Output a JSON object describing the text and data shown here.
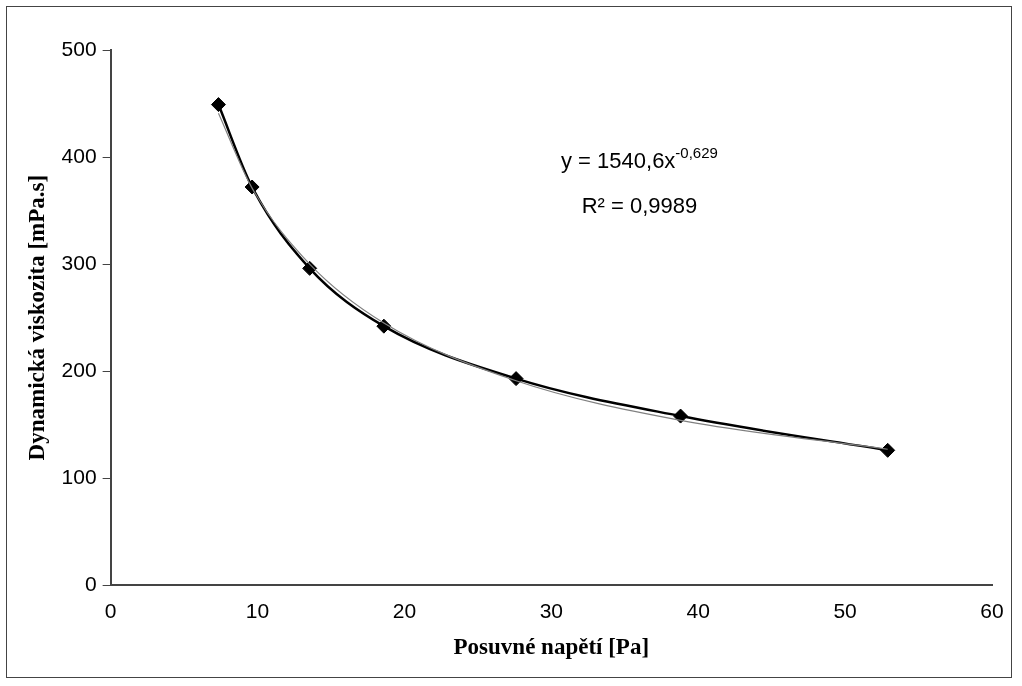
{
  "chart_data": {
    "type": "line",
    "xlabel": "Posuvné napětí [Pa]",
    "ylabel": "Dynamická viskozita [mPa.s]",
    "xlim": [
      0,
      60
    ],
    "xticks": [
      0,
      10,
      20,
      30,
      40,
      50,
      60
    ],
    "ylim": [
      0,
      500
    ],
    "yticks": [
      0,
      100,
      200,
      300,
      400,
      500
    ],
    "grid": false,
    "legend": false,
    "marker": "diamond",
    "line_style": "solid",
    "annotations": [
      "y = 1540,6x$^{-0,629}$",
      "R² = 0,9989"
    ],
    "series": [
      {
        "color": "#000000",
        "x": [
          7.34,
          9.63,
          13.55,
          18.6,
          27.6,
          38.8,
          52.9
        ],
        "values": [
          449,
          372,
          296,
          242,
          193,
          158,
          126
        ]
      },
      {
        "type": "line",
        "marker": "none",
        "color": "#808080",
        "x": [
          7.34,
          9.63,
          13.55,
          18.6,
          27.6,
          38.8,
          52.9
        ],
        "values": [
          441,
          371,
          300,
          245,
          191,
          154,
          127
        ]
      }
    ]
  }
}
